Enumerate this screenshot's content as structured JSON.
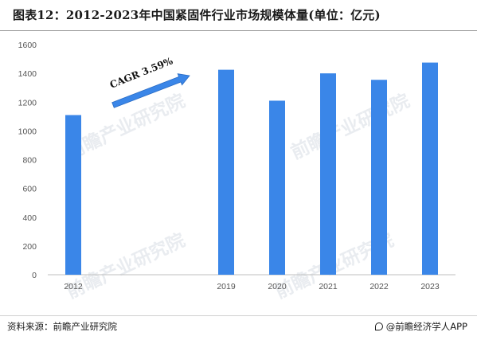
{
  "title": "图表12：2012-2023年中国紧固件行业市场规模体量(单位：亿元)",
  "source": "资料来源：前瞻产业研究院",
  "brand": "@前瞻经济学人APP",
  "watermark": "前瞻产业研究院",
  "annotation": {
    "label": "CAGR  3.59%"
  },
  "colors": {
    "bar": "#3a86e8",
    "arrow": "#3a86e8",
    "grid": "none"
  },
  "chart_data": {
    "type": "bar",
    "title": "图表12：2012-2023年中国紧固件行业市场规模体量(单位：亿元)",
    "xlabel": "",
    "ylabel": "",
    "categories": [
      "2012",
      "",
      "",
      "2019",
      "2020",
      "2021",
      "2022",
      "2023"
    ],
    "values": [
      1110,
      null,
      null,
      1425,
      1210,
      1400,
      1355,
      1475
    ],
    "ylim": [
      0,
      1600
    ],
    "yticks": [
      0,
      200,
      400,
      600,
      800,
      1000,
      1200,
      1400,
      1600
    ],
    "grid": false,
    "legend": "none"
  }
}
